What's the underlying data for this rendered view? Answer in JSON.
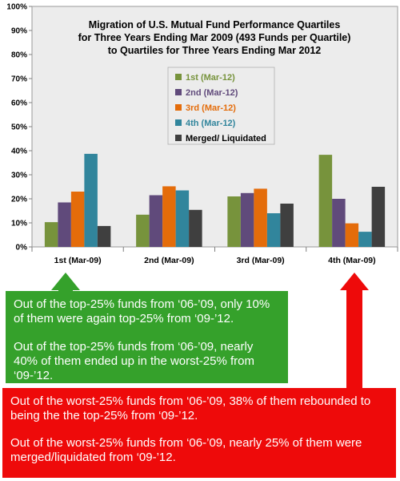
{
  "colors": {
    "s1": "#77933c",
    "s2": "#604a7b",
    "s3": "#e46c0a",
    "s4": "#31859c",
    "s5": "#3f3f3f",
    "green_note": "#35a12b",
    "red_note": "#ee0a0a"
  },
  "chart_data": {
    "type": "bar",
    "title": [
      "Migration of U.S. Mutual Fund Performance Quartiles",
      "for Three Years Ending Mar 2009 (493 Funds per Quartile)",
      "to Quartiles for Three Years Ending Mar 2012"
    ],
    "categories": [
      "1st (Mar-09)",
      "2nd (Mar-09)",
      "3rd (Mar-09)",
      "4th (Mar-09)"
    ],
    "series": [
      {
        "name": "1st (Mar-12)",
        "values": [
          10.3,
          13.4,
          21.0,
          38.3
        ]
      },
      {
        "name": "2nd (Mar-12)",
        "values": [
          18.5,
          21.5,
          22.4,
          20.0
        ]
      },
      {
        "name": "3rd (Mar-12)",
        "values": [
          23.0,
          25.2,
          24.2,
          9.8
        ]
      },
      {
        "name": "4th (Mar-12)",
        "values": [
          38.7,
          23.5,
          14.0,
          6.3
        ]
      },
      {
        "name": "Merged/ Liquidated",
        "values": [
          8.7,
          15.4,
          18.0,
          25.0
        ]
      }
    ],
    "ylim": [
      0,
      100
    ],
    "yticks": [
      "0%",
      "10%",
      "20%",
      "30%",
      "40%",
      "50%",
      "60%",
      "70%",
      "80%",
      "90%",
      "100%"
    ],
    "legend": "upper-center",
    "grid": false
  },
  "notes": {
    "green": [
      "Out of the top-25% funds from ‘06-’09, only 10% of them were again top-25% from ‘09-’12.",
      "Out of the top-25% funds from ‘06-’09, nearly 40% of them ended up in the worst-25% from ‘09-’12."
    ],
    "red": [
      "Out of the worst-25% funds from ‘06-’09, 38% of them rebounded to being the the top-25% from ‘09-’12.",
      "Out of the worst-25% funds from ‘06-’09, nearly 25% of them were merged/liquidated from ‘09-’12."
    ]
  }
}
